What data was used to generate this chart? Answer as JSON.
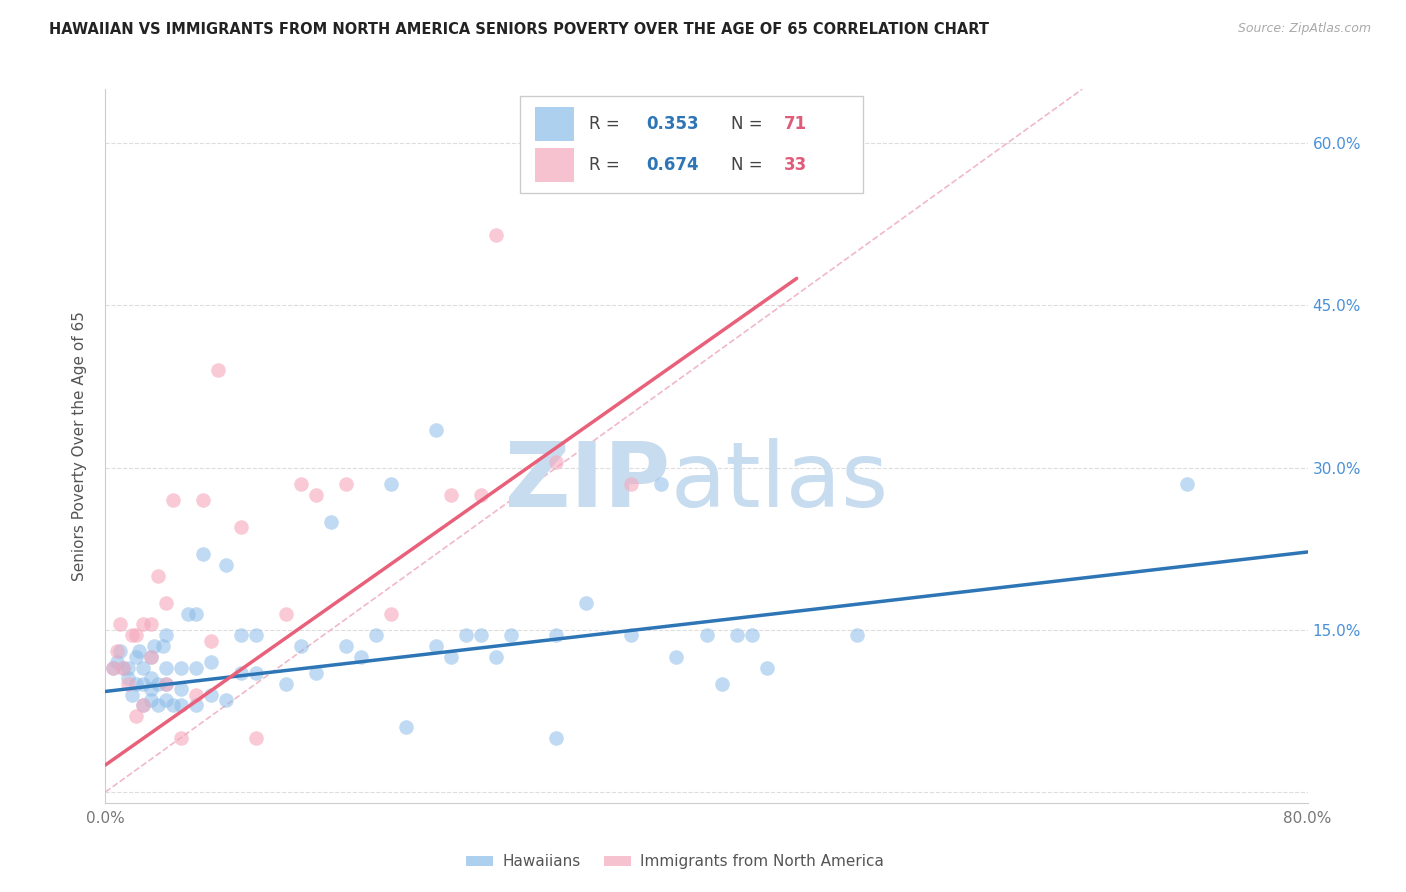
{
  "title": "HAWAIIAN VS IMMIGRANTS FROM NORTH AMERICA SENIORS POVERTY OVER THE AGE OF 65 CORRELATION CHART",
  "source": "Source: ZipAtlas.com",
  "ylabel": "Seniors Poverty Over the Age of 65",
  "xlim": [
    0.0,
    0.8
  ],
  "ylim": [
    -0.01,
    0.65
  ],
  "yticks": [
    0.0,
    0.15,
    0.3,
    0.45,
    0.6
  ],
  "ytick_labels": [
    "",
    "15.0%",
    "30.0%",
    "45.0%",
    "60.0%"
  ],
  "xticks": [
    0.0,
    0.1,
    0.2,
    0.3,
    0.4,
    0.5,
    0.6,
    0.7,
    0.8
  ],
  "xtick_labels": [
    "0.0%",
    "",
    "",
    "",
    "",
    "",
    "",
    "",
    "80.0%"
  ],
  "hawaiian_color": "#8BBCE8",
  "immigrant_color": "#F5A8BC",
  "blue_line_color": "#2E75B6",
  "pink_line_color": "#E8607A",
  "diag_line_color": "#F0B8C8",
  "legend_R_color": "#2E75B6",
  "legend_N_color": "#E05A7A",
  "watermark_zip_color": "#C8DCF0",
  "watermark_atlas_color": "#C8DCF0",
  "hawaiian_scatter_x": [
    0.005,
    0.008,
    0.01,
    0.012,
    0.015,
    0.015,
    0.018,
    0.02,
    0.02,
    0.022,
    0.025,
    0.025,
    0.025,
    0.03,
    0.03,
    0.03,
    0.03,
    0.032,
    0.035,
    0.035,
    0.038,
    0.04,
    0.04,
    0.04,
    0.04,
    0.045,
    0.05,
    0.05,
    0.05,
    0.055,
    0.06,
    0.06,
    0.06,
    0.065,
    0.07,
    0.07,
    0.08,
    0.08,
    0.09,
    0.09,
    0.1,
    0.1,
    0.12,
    0.13,
    0.14,
    0.15,
    0.16,
    0.17,
    0.18,
    0.19,
    0.2,
    0.22,
    0.22,
    0.23,
    0.24,
    0.25,
    0.26,
    0.27,
    0.3,
    0.3,
    0.32,
    0.35,
    0.37,
    0.38,
    0.4,
    0.41,
    0.42,
    0.43,
    0.44,
    0.5,
    0.72
  ],
  "hawaiian_scatter_y": [
    0.115,
    0.12,
    0.13,
    0.115,
    0.105,
    0.115,
    0.09,
    0.1,
    0.125,
    0.13,
    0.08,
    0.1,
    0.115,
    0.085,
    0.095,
    0.105,
    0.125,
    0.135,
    0.08,
    0.1,
    0.135,
    0.085,
    0.1,
    0.115,
    0.145,
    0.08,
    0.08,
    0.095,
    0.115,
    0.165,
    0.08,
    0.115,
    0.165,
    0.22,
    0.09,
    0.12,
    0.085,
    0.21,
    0.11,
    0.145,
    0.11,
    0.145,
    0.1,
    0.135,
    0.11,
    0.25,
    0.135,
    0.125,
    0.145,
    0.285,
    0.06,
    0.135,
    0.335,
    0.125,
    0.145,
    0.145,
    0.125,
    0.145,
    0.145,
    0.05,
    0.175,
    0.145,
    0.285,
    0.125,
    0.145,
    0.1,
    0.145,
    0.145,
    0.115,
    0.145,
    0.285
  ],
  "immigrant_scatter_x": [
    0.005,
    0.008,
    0.01,
    0.012,
    0.015,
    0.018,
    0.02,
    0.02,
    0.025,
    0.025,
    0.03,
    0.03,
    0.035,
    0.04,
    0.04,
    0.045,
    0.05,
    0.06,
    0.065,
    0.07,
    0.075,
    0.09,
    0.1,
    0.12,
    0.13,
    0.14,
    0.16,
    0.19,
    0.23,
    0.25,
    0.26,
    0.3,
    0.35
  ],
  "immigrant_scatter_y": [
    0.115,
    0.13,
    0.155,
    0.115,
    0.1,
    0.145,
    0.07,
    0.145,
    0.08,
    0.155,
    0.125,
    0.155,
    0.2,
    0.1,
    0.175,
    0.27,
    0.05,
    0.09,
    0.27,
    0.14,
    0.39,
    0.245,
    0.05,
    0.165,
    0.285,
    0.275,
    0.285,
    0.165,
    0.275,
    0.275,
    0.515,
    0.305,
    0.285
  ],
  "blue_line_x": [
    0.0,
    0.8
  ],
  "blue_line_y": [
    0.093,
    0.222
  ],
  "pink_line_x": [
    0.0,
    0.46
  ],
  "pink_line_y": [
    0.025,
    0.475
  ],
  "diag_line_x": [
    0.0,
    0.65
  ],
  "diag_line_y": [
    0.0,
    0.65
  ]
}
